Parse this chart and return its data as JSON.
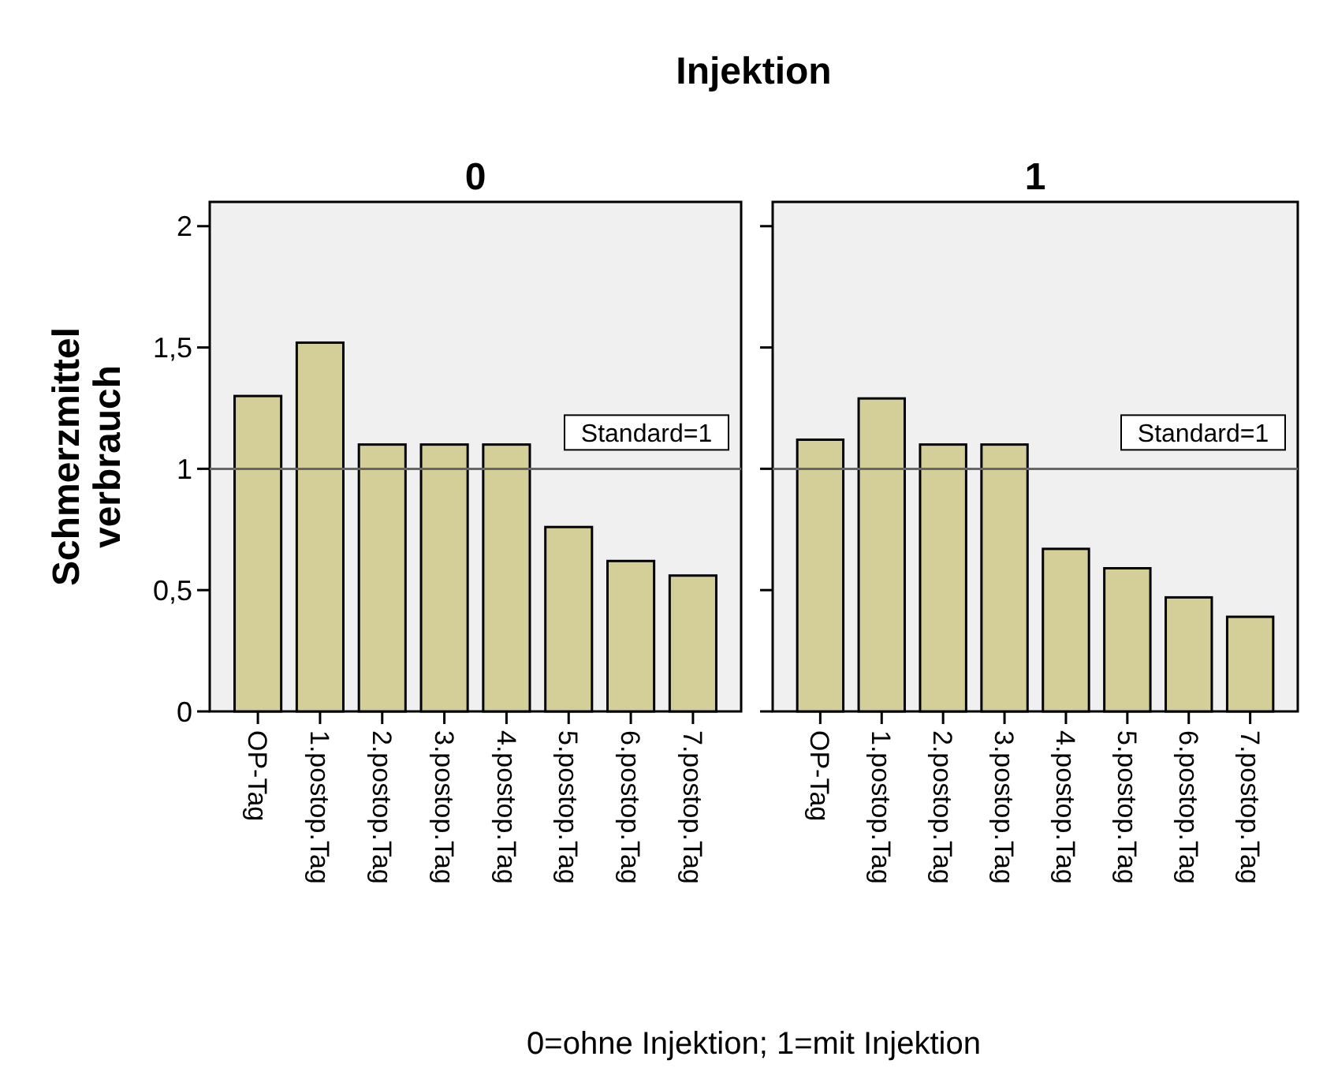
{
  "chart_data": [
    {
      "type": "bar",
      "title": "Injektion",
      "subtitle": "0",
      "ylabel": "Schmerzmittel verbrauch",
      "categories": [
        "OP-Tag",
        "1.postop.Tag",
        "2.postop.Tag",
        "3.postop.Tag",
        "4.postop.Tag",
        "5.postop.Tag",
        "6.postop.Tag",
        "7.postop.Tag"
      ],
      "series": [
        {
          "color": "#d4cf98",
          "values": [
            1.3,
            1.52,
            1.1,
            1.1,
            1.1,
            0.76,
            0.62,
            0.56
          ]
        }
      ],
      "ylim": [
        0,
        2.1
      ],
      "yticks": [
        0,
        {
          "value": 0.5,
          "label": "0,5"
        },
        1,
        {
          "value": 1.5,
          "label": "1,5"
        },
        2
      ],
      "ref_lines": [
        {
          "axis": "y",
          "value": 1,
          "label": "Standard=1"
        }
      ],
      "grid": false,
      "annotations": [
        "0=ohne Injektion; 1=mit Injektion"
      ]
    },
    {
      "type": "bar",
      "subtitle": "1",
      "categories": [
        "OP-Tag",
        "1.postop.Tag",
        "2.postop.Tag",
        "3.postop.Tag",
        "4.postop.Tag",
        "5.postop.Tag",
        "6.postop.Tag",
        "7.postop.Tag"
      ],
      "series": [
        {
          "color": "#d4cf98",
          "values": [
            1.12,
            1.29,
            1.1,
            1.1,
            0.67,
            0.59,
            0.47,
            0.39
          ]
        }
      ],
      "ylim": [
        0,
        2.1
      ],
      "yticks": [
        {
          "value": 0,
          "label": null
        },
        {
          "value": 0.5,
          "label": null
        },
        {
          "value": 1,
          "label": null
        },
        {
          "value": 1.5,
          "label": null
        },
        {
          "value": 2,
          "label": null
        }
      ],
      "tick_labels": "x",
      "ref_lines": [
        {
          "axis": "y",
          "value": 1,
          "label": "Standard=1"
        }
      ],
      "grid": false
    }
  ]
}
